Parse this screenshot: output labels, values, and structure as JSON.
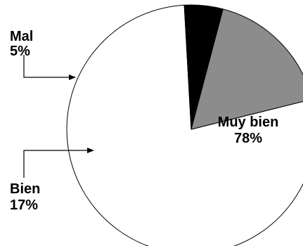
{
  "chart_data": {
    "type": "pie",
    "title": "",
    "start_angle_deg": -14,
    "direction": "clockwise",
    "series": [
      {
        "slices": [
          {
            "label": "Muy bien",
            "value": 78,
            "value_label": "78%",
            "color": "#ffffff"
          },
          {
            "label": "Mal",
            "value": 5,
            "value_label": "5%",
            "color": "#000000"
          },
          {
            "label": "Bien",
            "value": 17,
            "value_label": "17%",
            "color": "#8c8c8c"
          }
        ]
      }
    ],
    "outline_color": "#000000"
  }
}
